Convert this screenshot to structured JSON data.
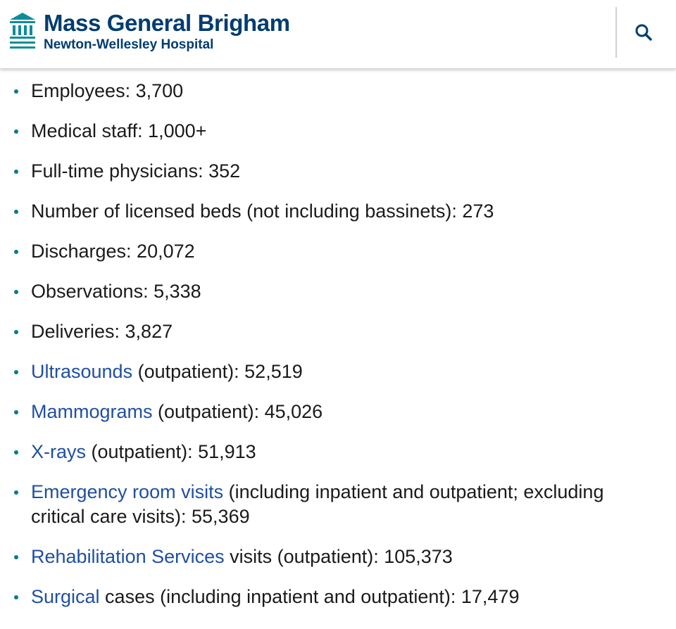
{
  "header": {
    "brand": "Mass General Brigham",
    "subtitle": "Newton-Wellesley Hospital",
    "logo_icon": "building-columns-icon",
    "search_icon": "search-icon"
  },
  "colors": {
    "brand_navy": "#003c71",
    "link_blue": "#1f4fa3",
    "bullet_teal": "#007c8a",
    "logo_teal": "#0e8c99"
  },
  "stats": [
    {
      "link": "",
      "text": "Employees: 3,700"
    },
    {
      "link": "",
      "text": "Medical staff: 1,000+"
    },
    {
      "link": "",
      "text": "Full-time physicians: 352"
    },
    {
      "link": "",
      "text": "Number of licensed beds (not including bassinets): 273"
    },
    {
      "link": "",
      "text": "Discharges: 20,072"
    },
    {
      "link": "",
      "text": "Observations: 5,338"
    },
    {
      "link": "",
      "text": "Deliveries: 3,827"
    },
    {
      "link": "Ultrasounds",
      "text": " (outpatient): 52,519"
    },
    {
      "link": "Mammograms",
      "text": " (outpatient): 45,026"
    },
    {
      "link": "X-rays",
      "text": " (outpatient): 51,913"
    },
    {
      "link": "Emergency room visits",
      "text": " (including inpatient and outpatient; excluding critical care visits): 55,369"
    },
    {
      "link": "Rehabilitation Services",
      "text": " visits (outpatient): 105,373"
    },
    {
      "link": "Surgical",
      "text": " cases (including inpatient and outpatient): 17,479"
    }
  ]
}
